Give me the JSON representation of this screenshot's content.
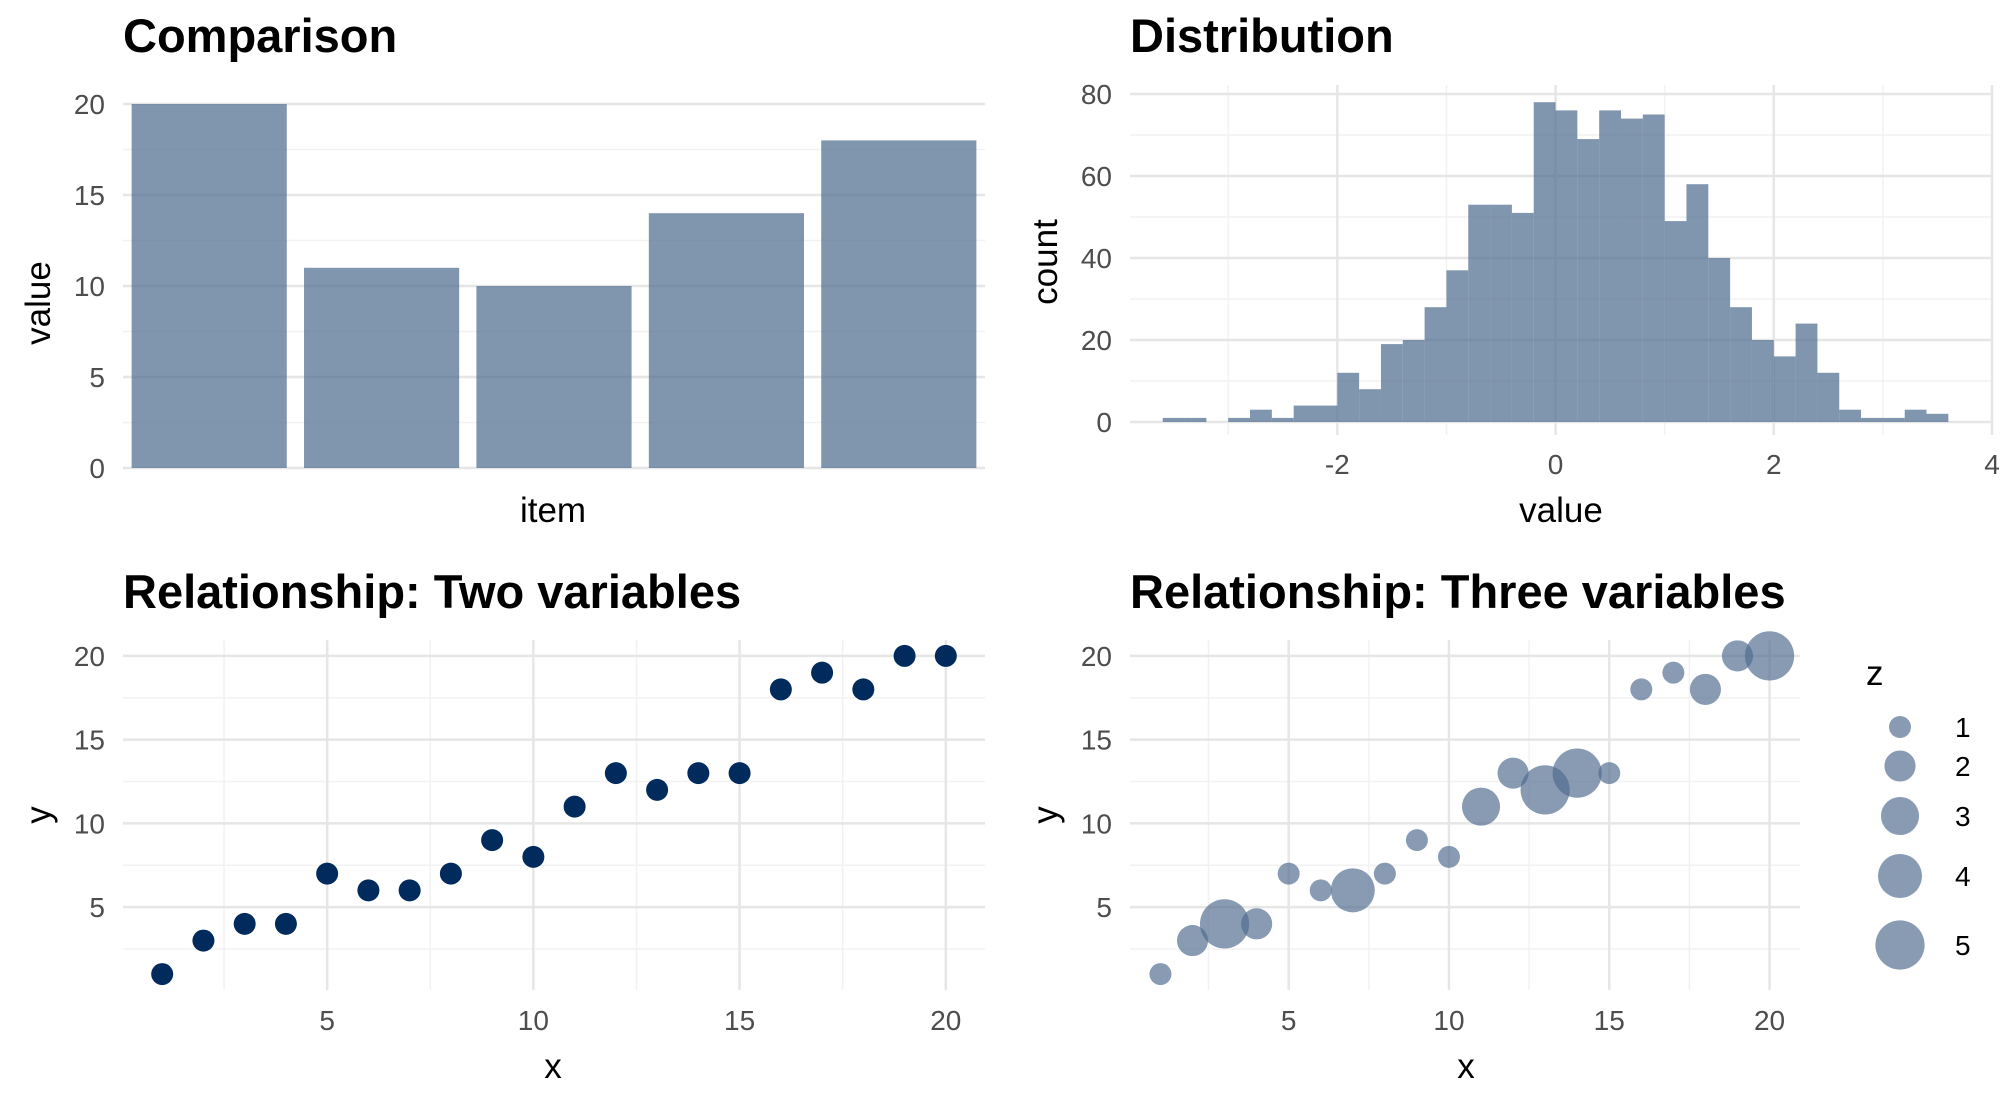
{
  "chart_data": [
    {
      "type": "bar",
      "title": "Comparison",
      "xlabel": "item",
      "ylabel": "value",
      "categories": [
        "",
        "",
        "",
        "",
        ""
      ],
      "values": [
        20,
        11,
        10,
        14,
        18
      ],
      "ylim": [
        0,
        20
      ],
      "yticks": [
        0,
        5,
        10,
        15,
        20
      ],
      "ytick_labels": [
        "0",
        "5",
        "10",
        "15",
        "20"
      ],
      "grid": true,
      "color": "#4f6c8f"
    },
    {
      "type": "bar",
      "subtype": "histogram",
      "title": "Distribution",
      "xlabel": "value",
      "ylabel": "count",
      "bin_start": -3.6,
      "bin_width": 0.2,
      "counts": [
        1,
        1,
        0,
        1,
        3,
        1,
        4,
        4,
        12,
        8,
        19,
        20,
        28,
        37,
        53,
        53,
        51,
        78,
        76,
        69,
        76,
        74,
        75,
        49,
        58,
        40,
        28,
        20,
        16,
        24,
        12,
        3,
        1,
        1,
        3,
        2,
        0,
        0,
        0,
        1
      ],
      "xlim": [
        -3.9,
        4.0
      ],
      "ylim": [
        0,
        80
      ],
      "xticks": [
        -2,
        0,
        2,
        4
      ],
      "xtick_labels": [
        "-2",
        "0",
        "2",
        "4"
      ],
      "yticks": [
        0,
        20,
        40,
        60,
        80
      ],
      "ytick_labels": [
        "0",
        "20",
        "40",
        "60",
        "80"
      ],
      "grid": true,
      "color": "#4f6c8f"
    },
    {
      "type": "scatter",
      "title": "Relationship: Two variables",
      "xlabel": "x",
      "ylabel": "y",
      "x": [
        1,
        2,
        3,
        4,
        5,
        6,
        7,
        8,
        9,
        10,
        11,
        12,
        13,
        14,
        15,
        16,
        17,
        18,
        19,
        20
      ],
      "y": [
        1,
        3,
        4,
        4,
        7,
        6,
        6,
        7,
        9,
        8,
        11,
        13,
        12,
        13,
        13,
        18,
        19,
        18,
        20,
        20
      ],
      "xlim": [
        0.05,
        20.95
      ],
      "ylim": [
        0.05,
        20.95
      ],
      "xticks": [
        5,
        10,
        15,
        20
      ],
      "xtick_labels": [
        "5",
        "10",
        "15",
        "20"
      ],
      "yticks": [
        5,
        10,
        15,
        20
      ],
      "ytick_labels": [
        "5",
        "10",
        "15",
        "20"
      ],
      "grid": true,
      "color": "#002b5c"
    },
    {
      "type": "scatter",
      "subtype": "bubble",
      "title": "Relationship: Three variables",
      "xlabel": "x",
      "ylabel": "y",
      "x": [
        1,
        2,
        3,
        4,
        5,
        6,
        7,
        8,
        9,
        10,
        11,
        12,
        13,
        14,
        15,
        16,
        17,
        18,
        19,
        20
      ],
      "y": [
        1,
        3,
        4,
        4,
        7,
        6,
        6,
        7,
        9,
        8,
        11,
        13,
        12,
        13,
        13,
        18,
        19,
        18,
        20,
        20
      ],
      "z": [
        1,
        2,
        5,
        2,
        1,
        1,
        4,
        1,
        1,
        1,
        3,
        2,
        5,
        5,
        1,
        1,
        1,
        2,
        2,
        5
      ],
      "xlim": [
        0.05,
        20.95
      ],
      "ylim": [
        0.05,
        20.95
      ],
      "xticks": [
        5,
        10,
        15,
        20
      ],
      "xtick_labels": [
        "5",
        "10",
        "15",
        "20"
      ],
      "yticks": [
        5,
        10,
        15,
        20
      ],
      "ytick_labels": [
        "5",
        "10",
        "15",
        "20"
      ],
      "grid": true,
      "color": "#4f6c8f",
      "legend": {
        "title": "z",
        "placement": "right",
        "entries": [
          {
            "label": "1",
            "z": 1
          },
          {
            "label": "2",
            "z": 2
          },
          {
            "label": "3",
            "z": 3
          },
          {
            "label": "4",
            "z": 4
          },
          {
            "label": "5",
            "z": 5
          }
        ]
      }
    }
  ]
}
